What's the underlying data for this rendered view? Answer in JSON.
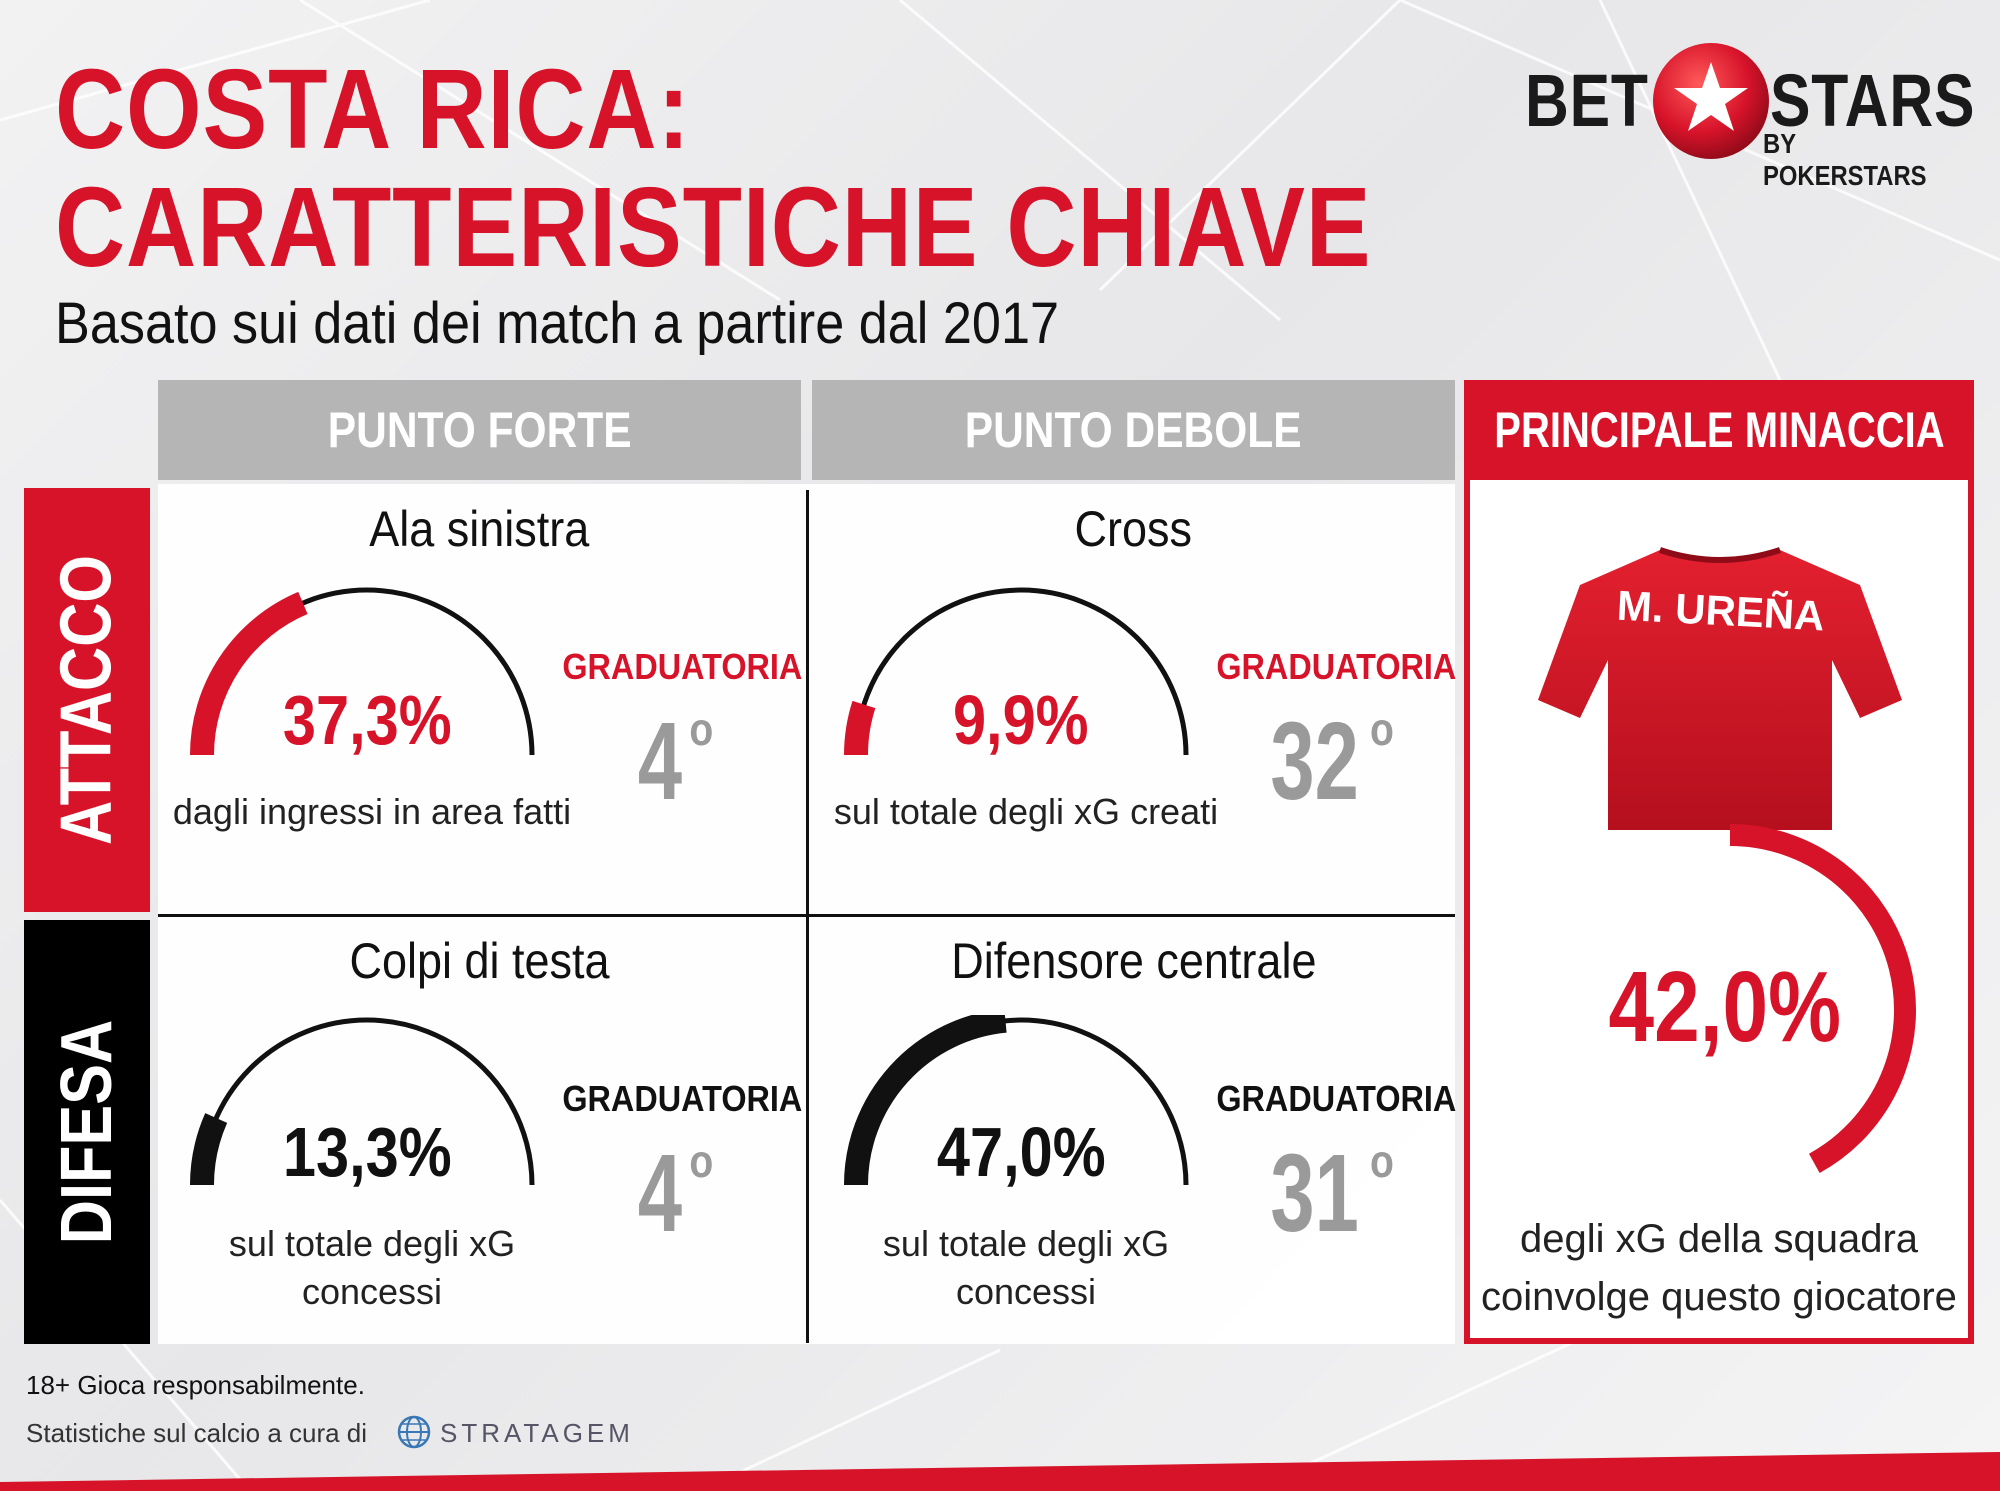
{
  "title_line1": "COSTA RICA:",
  "title_line2": "CARATTERISTICHE CHIAVE",
  "subtitle": "Basato sui dati dei match a partire dal 2017",
  "logo": {
    "bet": "BET",
    "stars": "STARS",
    "by": "BY POKERSTARS",
    "icon": "star-ball-icon"
  },
  "columns": {
    "strength": "PUNTO FORTE",
    "weakness": "PUNTO DEBOLE",
    "threat": "PRINCIPALE MINACCIA"
  },
  "rows": {
    "attack": "ATTACCO",
    "defense": "DIFESA"
  },
  "colors": {
    "red": "#d7132a",
    "black": "#111111",
    "header_gray": "#b5b5b5",
    "rank_gray": "#9a9a9a"
  },
  "cells": {
    "attack_strength": {
      "title": "Ala sinistra",
      "value_text": "37,3%",
      "value": 37.3,
      "desc_line1": "dagli ingressi in area fatti",
      "desc_line2": "",
      "rank_label": "GRADUATORIA",
      "rank": "4",
      "rank_sup": "o"
    },
    "attack_weakness": {
      "title": "Cross",
      "value_text": "9,9%",
      "value": 9.9,
      "desc_line1": "sul totale degli xG creati",
      "desc_line2": "",
      "rank_label": "GRADUATORIA",
      "rank": "32",
      "rank_sup": "o"
    },
    "defense_strength": {
      "title": "Colpi di testa",
      "value_text": "13,3%",
      "value": 13.3,
      "desc_line1": "sul totale degli xG",
      "desc_line2": "concessi",
      "rank_label": "GRADUATORIA",
      "rank": "4",
      "rank_sup": "o"
    },
    "defense_weakness": {
      "title": "Difensore centrale",
      "value_text": "47,0%",
      "value": 47.0,
      "desc_line1": "sul totale degli xG",
      "desc_line2": "concessi",
      "rank_label": "GRADUATORIA",
      "rank": "31",
      "rank_sup": "o"
    }
  },
  "threat": {
    "player_name": "M. UREÑA",
    "value_text": "42,0%",
    "value": 42.0,
    "desc_line1": "degli xG della squadra",
    "desc_line2": "coinvolge questo giocatore"
  },
  "footer": {
    "responsible": "18+ Gioca responsabilmente.",
    "credit": "Statistiche sul calcio a cura di",
    "partner": "STRATAGEM",
    "partner_icon": "globe-icon"
  }
}
